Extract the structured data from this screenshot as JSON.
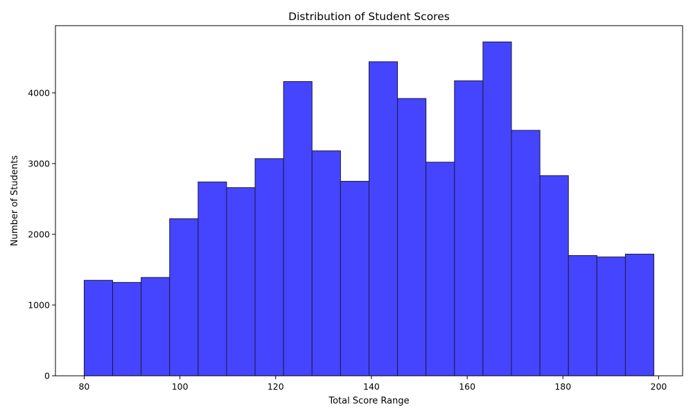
{
  "chart_data": {
    "type": "bar",
    "title": "Distribution of Student Scores",
    "xlabel": "Total Score Range",
    "ylabel": "Number of Students",
    "xlim": [
      74,
      205
    ],
    "ylim": [
      0,
      4950
    ],
    "x_ticks": [
      80,
      100,
      120,
      140,
      160,
      180,
      200
    ],
    "y_ticks": [
      0,
      1000,
      2000,
      3000,
      4000
    ],
    "bin_edges": [
      80,
      85.95,
      91.9,
      97.85,
      103.8,
      109.75,
      115.7,
      121.65,
      127.6,
      133.55,
      139.5,
      145.45,
      151.4,
      157.35,
      163.3,
      169.25,
      175.2,
      181.15,
      187.1,
      193.05,
      199
    ],
    "values": [
      1350,
      1320,
      1390,
      2220,
      2740,
      2660,
      3070,
      4160,
      3180,
      2750,
      4440,
      3920,
      3020,
      4170,
      4720,
      3470,
      2830,
      1700,
      1680,
      1720
    ],
    "bar_color": "#4545ff",
    "edge_color": "#1a1a3a",
    "grid": false,
    "legend": "none"
  }
}
